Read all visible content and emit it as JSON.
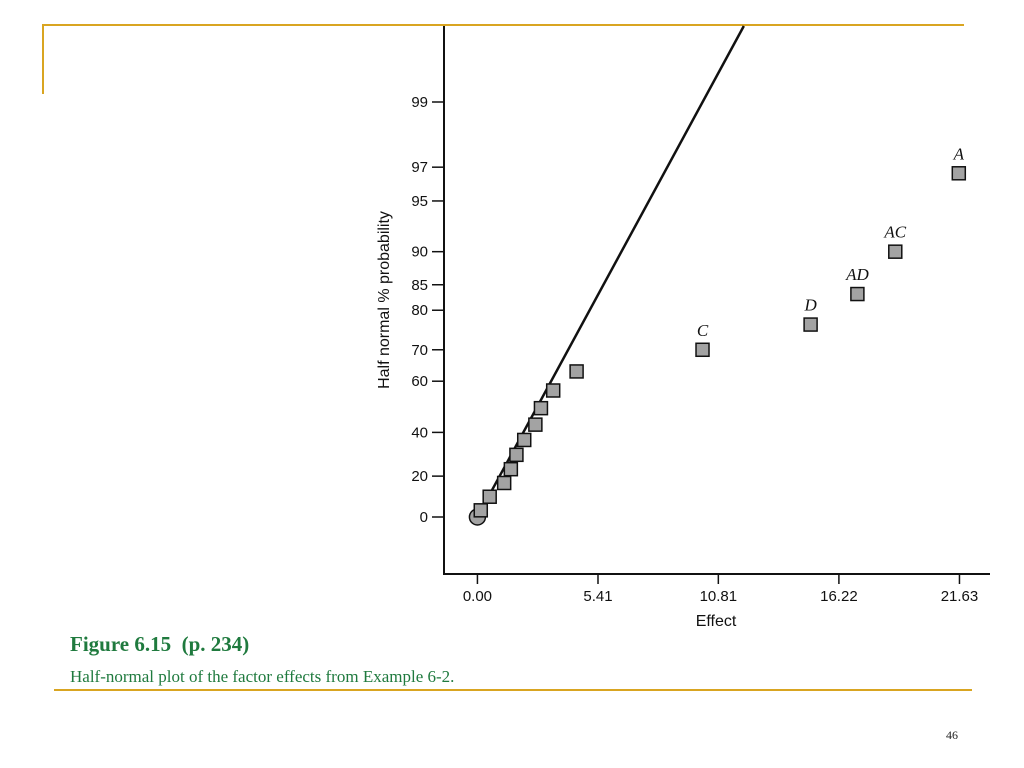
{
  "slide": {
    "caption_title": "Figure 6.15  (p. 234)",
    "caption_subtitle": "Half-normal plot of the factor effects from Example 6-2.",
    "page_number": "46",
    "accent_color": "#d9a521",
    "caption_color": "#1f7a3e"
  },
  "chart_data": {
    "type": "scatter",
    "title": "",
    "xlabel": "Effect",
    "ylabel": "Half normal % probability",
    "xlim": [
      -1.5,
      23.0
    ],
    "x_ticks": [
      0.0,
      5.41,
      10.81,
      16.22,
      21.63
    ],
    "x_tick_labels": [
      "0.00",
      "5.41",
      "10.81",
      "16.22",
      "21.63"
    ],
    "y_scale": "half-normal probability",
    "y_ticks": [
      0,
      20,
      40,
      60,
      70,
      80,
      85,
      90,
      95,
      97,
      99
    ],
    "y_tick_labels": [
      "0",
      "20",
      "40",
      "60",
      "70",
      "80",
      "85",
      "90",
      "95",
      "97",
      "99"
    ],
    "grid": false,
    "points": [
      {
        "x": 0.0,
        "y": 0.0,
        "marker": "circle",
        "label": ""
      },
      {
        "x": 0.15,
        "y": 3.3,
        "marker": "square",
        "label": ""
      },
      {
        "x": 0.55,
        "y": 10.0,
        "marker": "square",
        "label": ""
      },
      {
        "x": 1.2,
        "y": 16.7,
        "marker": "square",
        "label": ""
      },
      {
        "x": 1.5,
        "y": 23.3,
        "marker": "square",
        "label": ""
      },
      {
        "x": 1.75,
        "y": 30.0,
        "marker": "square",
        "label": ""
      },
      {
        "x": 2.1,
        "y": 36.7,
        "marker": "square",
        "label": ""
      },
      {
        "x": 2.6,
        "y": 43.3,
        "marker": "square",
        "label": ""
      },
      {
        "x": 2.85,
        "y": 50.0,
        "marker": "square",
        "label": ""
      },
      {
        "x": 3.4,
        "y": 56.7,
        "marker": "square",
        "label": ""
      },
      {
        "x": 4.45,
        "y": 63.3,
        "marker": "square",
        "label": ""
      },
      {
        "x": 10.1,
        "y": 70.0,
        "marker": "square",
        "label": "C"
      },
      {
        "x": 14.95,
        "y": 76.7,
        "marker": "square",
        "label": "D"
      },
      {
        "x": 17.05,
        "y": 83.3,
        "marker": "square",
        "label": "AD"
      },
      {
        "x": 18.75,
        "y": 90.0,
        "marker": "square",
        "label": "AC"
      },
      {
        "x": 21.6,
        "y": 96.7,
        "marker": "square",
        "label": "A"
      }
    ],
    "reference_line": {
      "x": [
        0.0,
        12.9
      ],
      "y": [
        0.0,
        99.9
      ]
    }
  }
}
